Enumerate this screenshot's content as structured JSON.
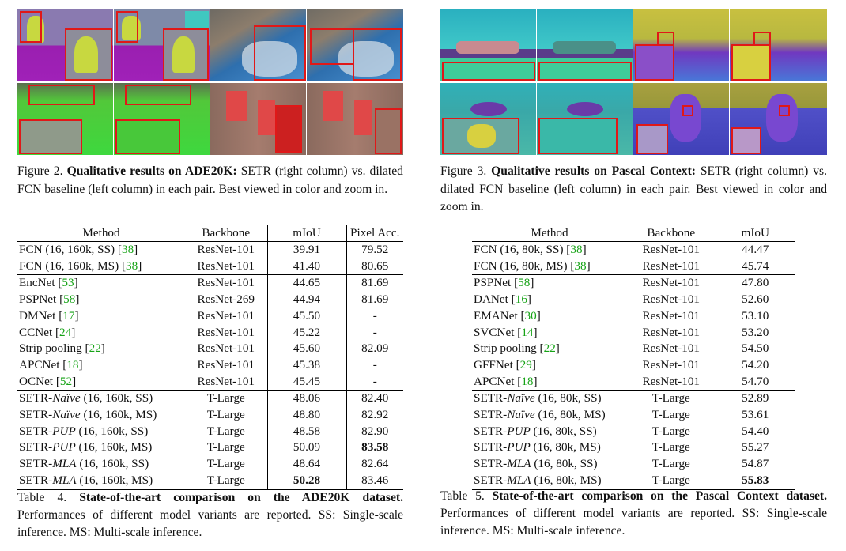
{
  "figure2": {
    "label": "Figure 2.",
    "title": "Qualitative results on ADE20K:",
    "text": "SETR (right column) vs. dilated FCN baseline (left column) in each pair. Best viewed in color and zoom in."
  },
  "figure3": {
    "label": "Figure 3.",
    "title": "Qualitative results on Pascal Context:",
    "text": "SETR (right column) vs. dilated FCN baseline (left column) in each pair. Best viewed in color and zoom in."
  },
  "table4": {
    "headers": [
      "Method",
      "Backbone",
      "mIoU",
      "Pixel Acc."
    ],
    "caption_label": "Table 4.",
    "caption_title": "State-of-the-art comparison on the ADE20K dataset.",
    "caption_text": "Performances of different model variants are reported. SS: Single-scale inference. MS: Multi-scale inference.",
    "rows": [
      {
        "prefix": "FCN (16, 160k, SS) [",
        "cite": "38",
        "suffix": "]",
        "backbone": "ResNet-101",
        "miou": "39.91",
        "pa": "79.52"
      },
      {
        "prefix": "FCN (16, 160k, MS) [",
        "cite": "38",
        "suffix": "]",
        "backbone": "ResNet-101",
        "miou": "41.40",
        "pa": "80.65"
      },
      {
        "prefix": "EncNet [",
        "cite": "53",
        "suffix": "]",
        "backbone": "ResNet-101",
        "miou": "44.65",
        "pa": "81.69"
      },
      {
        "prefix": "PSPNet [",
        "cite": "58",
        "suffix": "]",
        "backbone": "ResNet-269",
        "miou": "44.94",
        "pa": "81.69"
      },
      {
        "prefix": "DMNet [",
        "cite": "17",
        "suffix": "]",
        "backbone": "ResNet-101",
        "miou": "45.50",
        "pa": "-"
      },
      {
        "prefix": "CCNet [",
        "cite": "24",
        "suffix": "]",
        "backbone": "ResNet-101",
        "miou": "45.22",
        "pa": "-"
      },
      {
        "prefix": "Strip pooling [",
        "cite": "22",
        "suffix": "]",
        "backbone": "ResNet-101",
        "miou": "45.60",
        "pa": "82.09"
      },
      {
        "prefix": "APCNet [",
        "cite": "18",
        "suffix": "]",
        "backbone": "ResNet-101",
        "miou": "45.38",
        "pa": "-"
      },
      {
        "prefix": "OCNet [",
        "cite": "52",
        "suffix": "]",
        "backbone": "ResNet-101",
        "miou": "45.45",
        "pa": "-"
      },
      {
        "prefix": "SETR-",
        "variant": "Naïve",
        "suffix": " (16, 160k, SS)",
        "backbone": "T-Large",
        "miou": "48.06",
        "pa": "82.40"
      },
      {
        "prefix": "SETR-",
        "variant": "Naïve",
        "suffix": " (16, 160k, MS)",
        "backbone": "T-Large",
        "miou": "48.80",
        "pa": "82.92"
      },
      {
        "prefix": "SETR-",
        "variant": "PUP",
        "suffix": " (16, 160k, SS)",
        "backbone": "T-Large",
        "miou": "48.58",
        "pa": "82.90"
      },
      {
        "prefix": "SETR-",
        "variant": "PUP",
        "suffix": " (16, 160k, MS)",
        "backbone": "T-Large",
        "miou": "50.09",
        "pa": "83.58"
      },
      {
        "prefix": "SETR-",
        "variant": "MLA",
        "suffix": " (16, 160k, SS)",
        "backbone": "T-Large",
        "miou": "48.64",
        "pa": "82.64"
      },
      {
        "prefix": "SETR-",
        "variant": "MLA",
        "suffix": " (16, 160k, MS)",
        "backbone": "T-Large",
        "miou": "50.28",
        "pa": "83.46"
      }
    ]
  },
  "table5": {
    "headers": [
      "Method",
      "Backbone",
      "mIoU"
    ],
    "caption_label": "Table 5.",
    "caption_title": "State-of-the-art comparison on the Pascal Context dataset.",
    "caption_text": "Performances of different model variants are reported. SS: Single-scale inference. MS: Multi-scale inference.",
    "rows": [
      {
        "prefix": "FCN (16, 80k, SS) [",
        "cite": "38",
        "suffix": "]",
        "backbone": "ResNet-101",
        "miou": "44.47"
      },
      {
        "prefix": "FCN (16, 80k, MS) [",
        "cite": "38",
        "suffix": "]",
        "backbone": "ResNet-101",
        "miou": "45.74"
      },
      {
        "prefix": "PSPNet [",
        "cite": "58",
        "suffix": "]",
        "backbone": "ResNet-101",
        "miou": "47.80"
      },
      {
        "prefix": "DANet [",
        "cite": "16",
        "suffix": "]",
        "backbone": "ResNet-101",
        "miou": "52.60"
      },
      {
        "prefix": "EMANet [",
        "cite": "30",
        "suffix": "]",
        "backbone": "ResNet-101",
        "miou": "53.10"
      },
      {
        "prefix": "SVCNet [",
        "cite": "14",
        "suffix": "]",
        "backbone": "ResNet-101",
        "miou": "53.20"
      },
      {
        "prefix": "Strip pooling [",
        "cite": "22",
        "suffix": "]",
        "backbone": "ResNet-101",
        "miou": "54.50"
      },
      {
        "prefix": "GFFNet [",
        "cite": "29",
        "suffix": "]",
        "backbone": "ResNet-101",
        "miou": "54.20"
      },
      {
        "prefix": "APCNet [",
        "cite": "18",
        "suffix": "]",
        "backbone": "ResNet-101",
        "miou": "54.70"
      },
      {
        "prefix": "SETR-",
        "variant": "Naïve",
        "suffix": " (16, 80k, SS)",
        "backbone": "T-Large",
        "miou": "52.89"
      },
      {
        "prefix": "SETR-",
        "variant": "Naïve",
        "suffix": " (16, 80k, MS)",
        "backbone": "T-Large",
        "miou": "53.61"
      },
      {
        "prefix": "SETR-",
        "variant": "PUP",
        "suffix": " (16, 80k, SS)",
        "backbone": "T-Large",
        "miou": "54.40"
      },
      {
        "prefix": "SETR-",
        "variant": "PUP",
        "suffix": " (16, 80k, MS)",
        "backbone": "T-Large",
        "miou": "55.27"
      },
      {
        "prefix": "SETR-",
        "variant": "MLA",
        "suffix": " (16, 80k, SS)",
        "backbone": "T-Large",
        "miou": "54.87"
      },
      {
        "prefix": "SETR-",
        "variant": "MLA",
        "suffix": " (16, 80k, MS)",
        "backbone": "T-Large",
        "miou": "55.83"
      }
    ]
  },
  "colors": {
    "inset_border": "#e01818",
    "citation": "#16a316"
  }
}
